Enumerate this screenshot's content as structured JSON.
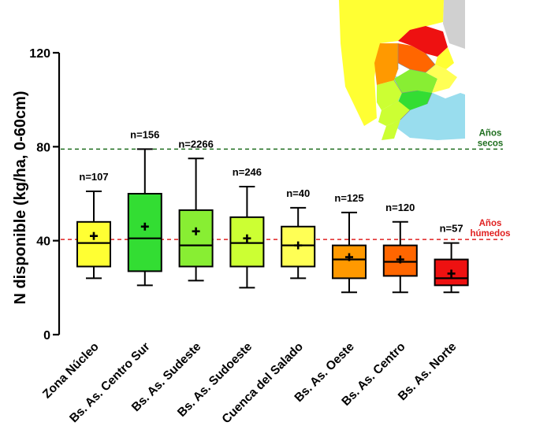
{
  "chart_data": {
    "type": "box",
    "ylabel": "N disponible (kg/ha, 0-60cm)",
    "ylim": [
      0,
      120
    ],
    "yticks": [
      "0",
      "40",
      "80",
      "120"
    ],
    "grid": false,
    "categories": [
      "Zona Núcleo",
      "Bs. As. Centro Sur",
      "Bs. As. Sudeste",
      "Bs. As. Sudoeste",
      "Cuenca del Salado",
      "Bs. As. Oeste",
      "Bs. As. Centro",
      "Bs. As. Norte"
    ],
    "n_labels": [
      "n=107",
      "n=156",
      "n=2266",
      "n=246",
      "n=40",
      "n=125",
      "n=120",
      "n=57"
    ],
    "colors": [
      "#ffff33",
      "#33dd33",
      "#88ee33",
      "#ccff33",
      "#ffff55",
      "#ff9900",
      "#ff6600",
      "#ee1111"
    ],
    "boxes": [
      {
        "min": 24,
        "q1": 29,
        "median": 39,
        "q3": 48,
        "max": 61,
        "mean": 42
      },
      {
        "min": 21,
        "q1": 27,
        "median": 41,
        "q3": 60,
        "max": 79,
        "mean": 46
      },
      {
        "min": 23,
        "q1": 29,
        "median": 38,
        "q3": 53,
        "max": 75,
        "mean": 44
      },
      {
        "min": 20,
        "q1": 29,
        "median": 39,
        "q3": 50,
        "max": 63,
        "mean": 41
      },
      {
        "min": 24,
        "q1": 29,
        "median": 38,
        "q3": 46,
        "max": 54,
        "mean": 38
      },
      {
        "min": 18,
        "q1": 24,
        "median": 32,
        "q3": 38,
        "max": 52,
        "mean": 33
      },
      {
        "min": 18,
        "q1": 25,
        "median": 31,
        "q3": 38,
        "max": 48,
        "mean": 32
      },
      {
        "min": 18,
        "q1": 21,
        "median": 24,
        "q3": 32,
        "max": 39,
        "mean": 26
      }
    ],
    "reference_lines": [
      {
        "value": 79,
        "label": [
          "Años",
          "secos"
        ],
        "color": "#1e6e1e"
      },
      {
        "value": 40.5,
        "label": [
          "Años",
          "húmedos"
        ],
        "color": "#e02020"
      }
    ]
  }
}
